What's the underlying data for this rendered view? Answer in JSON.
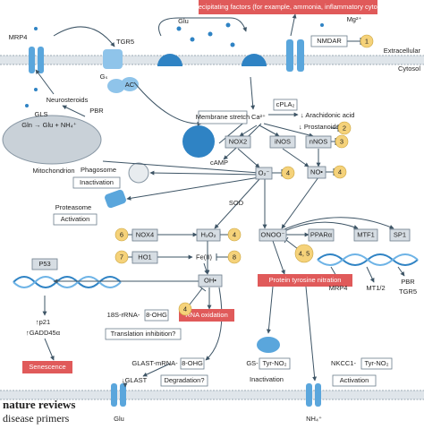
{
  "banner": "HE-precipitating factors (for example, ammonia, inflammatory cytokines)",
  "regions": {
    "extracellular": "Extracellular",
    "cytosol": "Cytosol"
  },
  "labels": {
    "mrp4_top": "MRP4",
    "tgr5_top": "TGR5",
    "glu_top": "Glu",
    "mg": "Mg²⁺",
    "nmdar": "NMDAR",
    "gs": "Gₛ",
    "ac": "AC",
    "pbr": "PBR",
    "neurosteroids": "Neurosteroids",
    "gls": "GLS",
    "gln": "Gln → Glu + NH₄⁺",
    "mitochondrion": "Mitochondrion",
    "membrane_stretch": "Membrane stretch",
    "ca": "Ca²⁺",
    "cpla2": "cPLA₂",
    "arachidonic": "↓ Arachidonic acid",
    "prostanoids": "↓ Prostanoids",
    "camp": "cAMP",
    "nox2": "NOX2",
    "inos": "iNOS",
    "nnos": "nNOS",
    "phagosome": "Phagosome",
    "inactivation_phago": "Inactivation",
    "proteasome": "Proteasome",
    "activation_prot": "Activation",
    "o2": "O₂⁻",
    "no": "NO•",
    "sod": "SOD",
    "nox4": "NOX4",
    "h2o2": "H₂O₂",
    "onoo": "ONOO⁻",
    "ppar": "PPARα",
    "mtf1": "MTF1",
    "sp1": "SP1",
    "ho1": "HO1",
    "fe": "Fe(II)",
    "p53": "P53",
    "oh": "OH•",
    "ptn": "Protein tyrosine nitration",
    "mrp4_gene": "MRP4",
    "mt12": "MT1/2",
    "pbr_gene": "PBR",
    "tgr5_gene": "TGR5",
    "p21": "↑p21",
    "gadd": "↑GADD45α",
    "senescence": "Senescence",
    "rrna": "18S-rRNA-",
    "ohg1": "8-OHG",
    "rna_ox": "RNA oxidation",
    "translation": "Translation inhibition?",
    "glast_mrna": "GLAST-mRNA-",
    "ohg2": "8-OHG",
    "degradation": "Degradation?",
    "glast": "↓GLAST",
    "gs_enz": "GS-",
    "tyr1": "Tyr-NO₂",
    "inactivation_gs": "Inactivation",
    "nkcc1": "NKCC1-",
    "tyr2": "Tyr-NO₂",
    "activation_nkcc": "Activation",
    "glu_bottom": "Glu",
    "nh4": "NH₄⁺"
  },
  "badges": [
    "1",
    "2",
    "3",
    "4",
    "4",
    "6",
    "4",
    "7",
    "8",
    "4, 5",
    "4"
  ],
  "footer": {
    "brand": "nature reviews",
    "sub": "disease primers"
  }
}
